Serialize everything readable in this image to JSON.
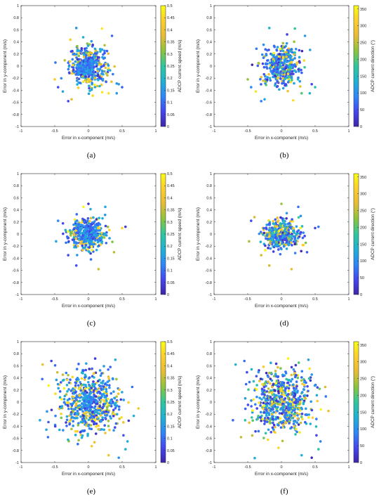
{
  "colormap": [
    "#3e26a8",
    "#4547f1",
    "#2e87f7",
    "#1fb2d3",
    "#2ec79e",
    "#8cc43c",
    "#e7bc33",
    "#fcce2e",
    "#f9fb15"
  ],
  "chart_data": [
    {
      "type": "scatter",
      "panel": "a",
      "caption": "(a)",
      "xlabel": "Error in x-component (m/s)",
      "ylabel": "Error in y-component (m/s)",
      "xlim": [
        -1,
        1
      ],
      "ylim": [
        -1,
        1
      ],
      "xticks": [
        "-1",
        "-0.5",
        "0",
        "0.5",
        "1"
      ],
      "yticks": [
        "1",
        "0.8",
        "0.6",
        "0.4",
        "0.2",
        "0",
        "-0.2",
        "-0.4",
        "-0.6",
        "-0.8",
        "-1"
      ],
      "colorbar": {
        "label": "ADCP current speed (m/s)",
        "min": 0,
        "max": 0.5,
        "ticks": [
          "0.5",
          "0.45",
          "0.4",
          "0.35",
          "0.3",
          "0.25",
          "0.2",
          "0.15",
          "0.1",
          "0.05",
          "0"
        ]
      },
      "spread": {
        "sx": 0.14,
        "sy": 0.16,
        "n": 430
      },
      "outliers": [
        [
          -0.45,
          -0.35
        ],
        [
          -0.38,
          -0.42
        ],
        [
          -0.3,
          -0.58
        ],
        [
          0.45,
          -0.3
        ],
        [
          0.5,
          -0.35
        ],
        [
          0.2,
          0.62
        ],
        [
          -0.18,
          0.63
        ],
        [
          0.35,
          0.5
        ],
        [
          0.3,
          -0.45
        ],
        [
          -0.5,
          -0.22
        ],
        [
          0.42,
          -0.45
        ],
        [
          -0.25,
          -0.55
        ]
      ]
    },
    {
      "type": "scatter",
      "panel": "b",
      "caption": "(b)",
      "xlabel": "Error in x-component (m/s)",
      "ylabel": "Error in y-component (m/s)",
      "xlim": [
        -1,
        1
      ],
      "ylim": [
        -1,
        1
      ],
      "xticks": [
        "-1",
        "-0.5",
        "0",
        "0.5",
        "1"
      ],
      "yticks": [
        "1",
        "0.8",
        "0.6",
        "0.4",
        "0.2",
        "0",
        "-0.2",
        "-0.4",
        "-0.6",
        "-0.8",
        "-1"
      ],
      "colorbar": {
        "label": "ADCP current direction (°)",
        "min": 0,
        "max": 360,
        "ticks": [
          "350",
          "300",
          "250",
          "200",
          "150",
          "100",
          "50",
          "0"
        ]
      },
      "spread": {
        "sx": 0.14,
        "sy": 0.16,
        "n": 430
      },
      "outliers": [
        [
          -0.45,
          -0.35
        ],
        [
          -0.38,
          -0.42
        ],
        [
          -0.3,
          -0.58
        ],
        [
          0.45,
          -0.3
        ],
        [
          0.5,
          -0.35
        ],
        [
          0.2,
          0.62
        ],
        [
          -0.18,
          0.63
        ],
        [
          0.35,
          0.5
        ],
        [
          0.3,
          -0.45
        ],
        [
          -0.5,
          -0.22
        ],
        [
          0.42,
          -0.45
        ],
        [
          -0.25,
          -0.55
        ]
      ]
    },
    {
      "type": "scatter",
      "panel": "c",
      "caption": "(c)",
      "xlabel": "Error in x-component (m/s)",
      "ylabel": "Error in y-component (m/s)",
      "xlim": [
        -1,
        1
      ],
      "ylim": [
        -1,
        1
      ],
      "xticks": [
        "-1",
        "-0.5",
        "0",
        "0.5",
        "1"
      ],
      "yticks": [
        "1",
        "0.8",
        "0.6",
        "0.4",
        "0.2",
        "0",
        "-0.2",
        "-0.4",
        "-0.6",
        "-0.8",
        "-1"
      ],
      "colorbar": {
        "label": "ADCP current speed (m/s)",
        "min": 0,
        "max": 0.5,
        "ticks": [
          "0.5",
          "0.45",
          "0.4",
          "0.35",
          "0.3",
          "0.25",
          "0.2",
          "0.15",
          "0.1",
          "0.05",
          "0"
        ]
      },
      "spread": {
        "sx": 0.14,
        "sy": 0.13,
        "n": 400
      },
      "outliers": [
        [
          -0.48,
          -0.12
        ],
        [
          -0.45,
          0.22
        ],
        [
          0.5,
          0.1
        ],
        [
          0.55,
          0.12
        ],
        [
          -0.18,
          -0.52
        ],
        [
          0.0,
          0.5
        ],
        [
          0.15,
          -0.58
        ],
        [
          0.38,
          -0.3
        ],
        [
          -0.3,
          -0.35
        ],
        [
          0.25,
          0.45
        ]
      ]
    },
    {
      "type": "scatter",
      "panel": "d",
      "caption": "(d)",
      "xlabel": "Error in x-component (m/s)",
      "ylabel": "Error in y-component (m/s)",
      "xlim": [
        -1,
        1
      ],
      "ylim": [
        -1,
        1
      ],
      "xticks": [
        "-1",
        "-0.5",
        "0",
        "0.5",
        "1"
      ],
      "yticks": [
        "1",
        "0.8",
        "0.6",
        "0.4",
        "0.2",
        "0",
        "-0.2",
        "-0.4",
        "-0.6",
        "-0.8",
        "-1"
      ],
      "colorbar": {
        "label": "ADCP current direction (°)",
        "min": 0,
        "max": 360,
        "ticks": [
          "350",
          "300",
          "250",
          "200",
          "150",
          "100",
          "50",
          "0"
        ]
      },
      "spread": {
        "sx": 0.14,
        "sy": 0.13,
        "n": 400
      },
      "outliers": [
        [
          -0.48,
          -0.12
        ],
        [
          -0.45,
          0.22
        ],
        [
          0.5,
          0.1
        ],
        [
          0.55,
          0.12
        ],
        [
          -0.18,
          -0.52
        ],
        [
          0.0,
          0.5
        ],
        [
          0.15,
          -0.58
        ],
        [
          0.38,
          -0.3
        ],
        [
          -0.3,
          -0.35
        ],
        [
          0.25,
          0.45
        ]
      ]
    },
    {
      "type": "scatter",
      "panel": "e",
      "caption": "(e)",
      "xlabel": "Error in x-component (m/s)",
      "ylabel": "Error in y-component (m/s)",
      "xlim": [
        -1,
        1
      ],
      "ylim": [
        -1,
        1
      ],
      "xticks": [
        "-1",
        "-0.5",
        "0",
        "0.5",
        "1"
      ],
      "yticks": [
        "1",
        "0.8",
        "0.6",
        "0.4",
        "0.2",
        "0",
        "-0.2",
        "-0.4",
        "-0.6",
        "-0.8",
        "-1"
      ],
      "colorbar": {
        "label": "ADCP current speed (m/s)",
        "min": 0,
        "max": 0.5,
        "ticks": [
          "0.5",
          "0.45",
          "0.4",
          "0.35",
          "0.3",
          "0.25",
          "0.2",
          "0.15",
          "0.1",
          "0.05",
          "0"
        ]
      },
      "spread": {
        "sx": 0.22,
        "sy": 0.26,
        "n": 650
      },
      "outliers": [
        [
          -0.72,
          -0.3
        ],
        [
          -0.68,
          0.62
        ],
        [
          0.52,
          -0.55
        ],
        [
          0.55,
          -0.78
        ],
        [
          0.3,
          -0.88
        ],
        [
          0.45,
          -0.92
        ],
        [
          0.65,
          0.25
        ],
        [
          -0.55,
          0.68
        ],
        [
          0.1,
          0.72
        ],
        [
          0.4,
          0.7
        ],
        [
          -0.6,
          -0.58
        ],
        [
          0.58,
          -0.65
        ]
      ]
    },
    {
      "type": "scatter",
      "panel": "f",
      "caption": "(f)",
      "xlabel": "Error in x-component (m/s)",
      "ylabel": "Error in y-component (m/s)",
      "xlim": [
        -1,
        1
      ],
      "ylim": [
        -1,
        1
      ],
      "xticks": [
        "-1",
        "-0.5",
        "0",
        "0.5",
        "1"
      ],
      "yticks": [
        "1",
        "0.8",
        "0.6",
        "0.4",
        "0.2",
        "0",
        "-0.2",
        "-0.4",
        "-0.6",
        "-0.8",
        "-1"
      ],
      "colorbar": {
        "label": "ADCP current direction (°)",
        "min": 0,
        "max": 360,
        "ticks": [
          "350",
          "300",
          "250",
          "200",
          "150",
          "100",
          "50",
          "0"
        ]
      },
      "spread": {
        "sx": 0.22,
        "sy": 0.26,
        "n": 650
      },
      "outliers": [
        [
          -0.72,
          -0.3
        ],
        [
          -0.68,
          0.62
        ],
        [
          0.52,
          -0.55
        ],
        [
          0.55,
          -0.78
        ],
        [
          0.3,
          -0.88
        ],
        [
          0.45,
          -0.92
        ],
        [
          0.65,
          0.25
        ],
        [
          -0.55,
          0.68
        ],
        [
          0.1,
          0.72
        ],
        [
          0.4,
          0.7
        ],
        [
          -0.6,
          -0.58
        ],
        [
          0.58,
          -0.65
        ]
      ]
    }
  ]
}
